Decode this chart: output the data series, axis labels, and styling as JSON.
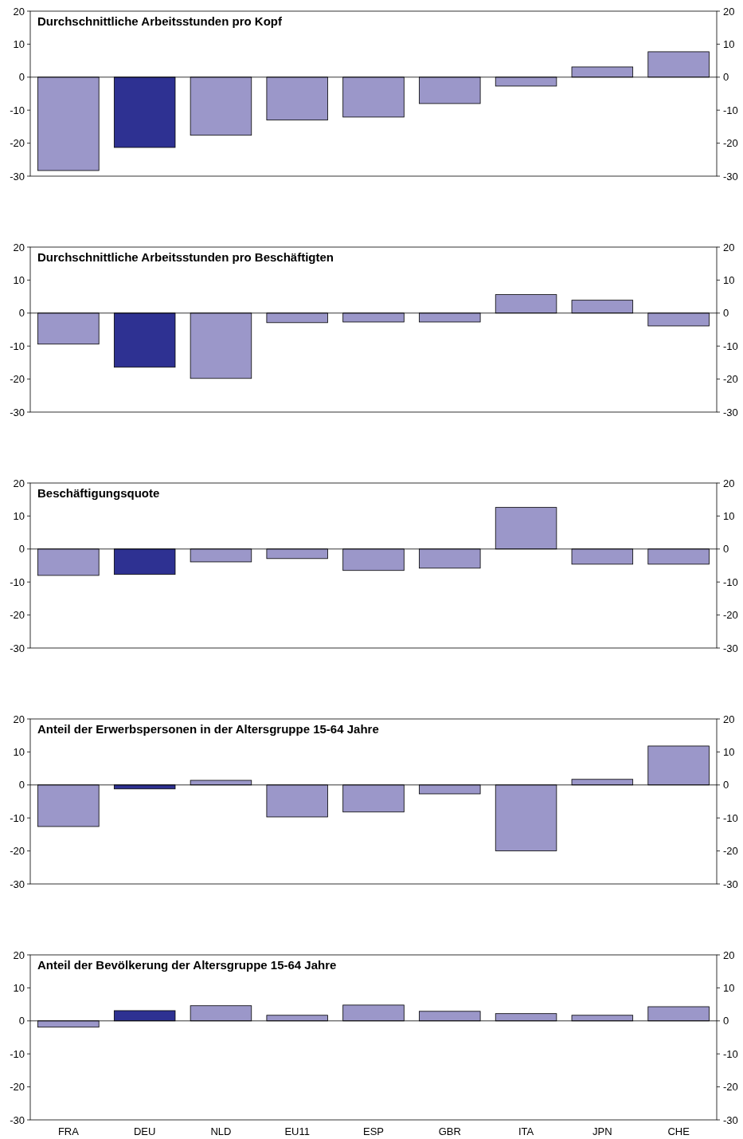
{
  "chart_data": [
    {
      "type": "bar",
      "title": "Durchschnittliche Arbeitsstunden pro Kopf",
      "categories": [
        null,
        null,
        null,
        null,
        null,
        null,
        null,
        null,
        null
      ],
      "values": [
        -28.3,
        -21.3,
        -17.6,
        -13.0,
        -12.1,
        -8.0,
        -2.7,
        3.1,
        7.7
      ],
      "colors": [
        "#9b97c9",
        "#2e3192",
        "#9b97c9",
        "#9b97c9",
        "#9b97c9",
        "#9b97c9",
        "#9b97c9",
        "#9b97c9",
        "#9b97c9"
      ],
      "ylim": [
        -30,
        20
      ],
      "yticks": [
        -30,
        -20,
        -10,
        0,
        10,
        20
      ],
      "y2lim": [
        -30,
        20
      ],
      "y2ticks": [
        -30,
        -20,
        -10,
        0,
        10,
        20
      ]
    },
    {
      "type": "bar",
      "title": "Durchschnittliche Arbeitsstunden pro Beschäftigten",
      "categories": [
        null,
        null,
        null,
        null,
        null,
        null,
        null,
        null,
        null
      ],
      "values": [
        -9.4,
        -16.4,
        -19.8,
        -2.9,
        -2.7,
        -2.7,
        5.6,
        3.9,
        -3.9
      ],
      "colors": [
        "#9b97c9",
        "#2e3192",
        "#9b97c9",
        "#9b97c9",
        "#9b97c9",
        "#9b97c9",
        "#9b97c9",
        "#9b97c9",
        "#9b97c9"
      ],
      "ylim": [
        -30,
        20
      ],
      "yticks": [
        -30,
        -20,
        -10,
        0,
        10,
        20
      ],
      "y2lim": [
        -30,
        20
      ],
      "y2ticks": [
        -30,
        -20,
        -10,
        0,
        10,
        20
      ]
    },
    {
      "type": "bar",
      "title": "Beschäftigungsquote",
      "categories": [
        null,
        null,
        null,
        null,
        null,
        null,
        null,
        null,
        null
      ],
      "values": [
        -8.0,
        -7.7,
        -3.9,
        -2.9,
        -6.5,
        -5.8,
        12.6,
        -4.6,
        -4.6
      ],
      "colors": [
        "#9b97c9",
        "#2e3192",
        "#9b97c9",
        "#9b97c9",
        "#9b97c9",
        "#9b97c9",
        "#9b97c9",
        "#9b97c9",
        "#9b97c9"
      ],
      "ylim": [
        -30,
        20
      ],
      "yticks": [
        -30,
        -20,
        -10,
        0,
        10,
        20
      ],
      "y2lim": [
        -30,
        20
      ],
      "y2ticks": [
        -30,
        -20,
        -10,
        0,
        10,
        20
      ]
    },
    {
      "type": "bar",
      "title": "Anteil der Erwerbspersonen in der Altersgruppe 15-64 Jahre",
      "categories": [
        null,
        null,
        null,
        null,
        null,
        null,
        null,
        null,
        null
      ],
      "values": [
        -12.6,
        -1.2,
        1.4,
        -9.7,
        -8.2,
        -2.7,
        -20.0,
        1.7,
        11.8
      ],
      "colors": [
        "#9b97c9",
        "#2e3192",
        "#9b97c9",
        "#9b97c9",
        "#9b97c9",
        "#9b97c9",
        "#9b97c9",
        "#9b97c9",
        "#9b97c9"
      ],
      "ylim": [
        -30,
        20
      ],
      "yticks": [
        -30,
        -20,
        -10,
        0,
        10,
        20
      ],
      "y2lim": [
        -30,
        20
      ],
      "y2ticks": [
        -30,
        -20,
        -10,
        0,
        10,
        20
      ]
    },
    {
      "type": "bar",
      "title": "Anteil der Bevölkerung der Altersgruppe 15-64 Jahre",
      "categories": [
        "FRA",
        "DEU",
        "NLD",
        "EU11",
        "ESP",
        "GBR",
        "ITA",
        "JPN",
        "CHE"
      ],
      "values": [
        -1.9,
        3.1,
        4.6,
        1.7,
        4.8,
        2.9,
        2.2,
        1.7,
        4.3
      ],
      "colors": [
        "#9b97c9",
        "#2e3192",
        "#9b97c9",
        "#9b97c9",
        "#9b97c9",
        "#9b97c9",
        "#9b97c9",
        "#9b97c9",
        "#9b97c9"
      ],
      "ylim": [
        -30,
        20
      ],
      "yticks": [
        -30,
        -20,
        -10,
        0,
        10,
        20
      ],
      "y2lim": [
        -30,
        20
      ],
      "y2ticks": [
        -30,
        -20,
        -10,
        0,
        10,
        20
      ]
    }
  ]
}
